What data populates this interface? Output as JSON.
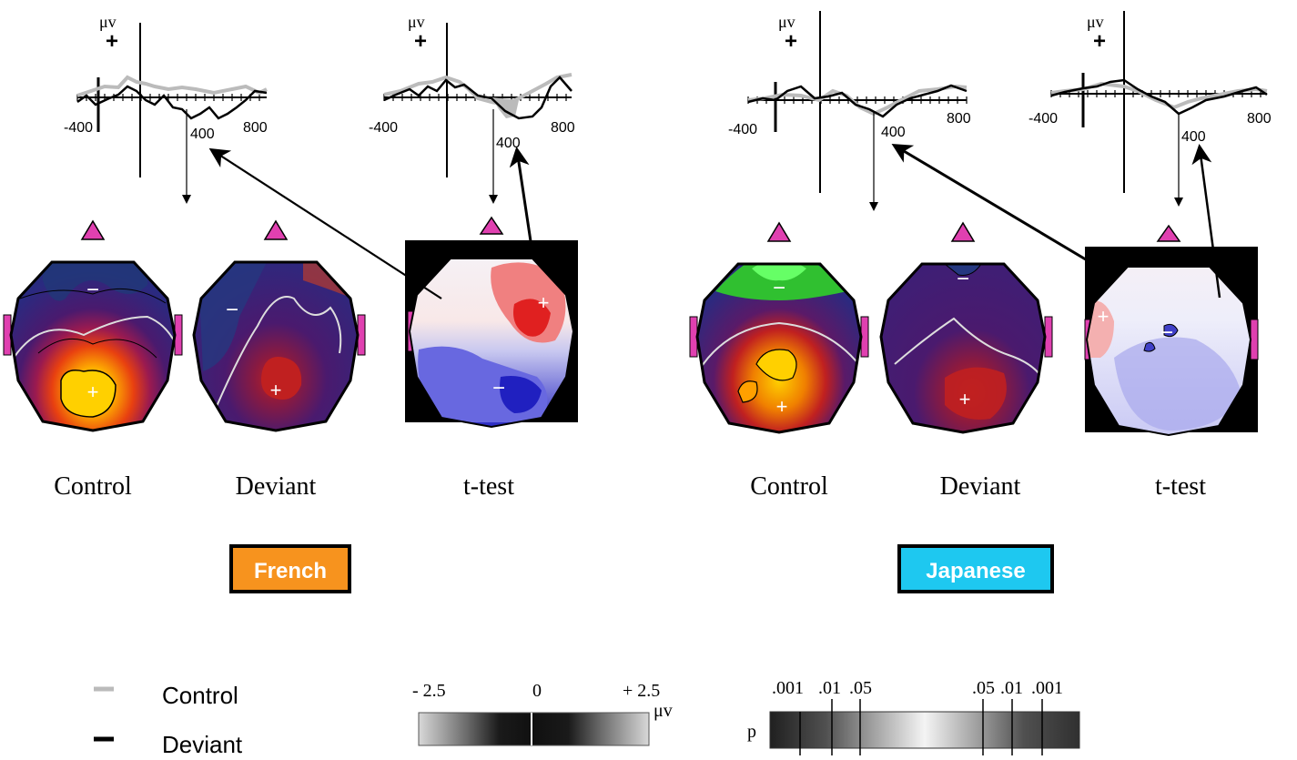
{
  "erp_axes": {
    "unit": "μv",
    "polarity": "+",
    "tick_labels": [
      "-400",
      "400",
      "800"
    ]
  },
  "panels": [
    {
      "id": "french",
      "group_label": "French",
      "group_color": "#F7931E",
      "maps": [
        {
          "label": "Control"
        },
        {
          "label": "Deviant"
        },
        {
          "label": "t-test"
        }
      ]
    },
    {
      "id": "japanese",
      "group_label": "Japanese",
      "group_color": "#1EC8F0",
      "maps": [
        {
          "label": "Control"
        },
        {
          "label": "Deviant"
        },
        {
          "label": "t-test"
        }
      ]
    }
  ],
  "map_markers": {
    "plus": "+",
    "minus": "−"
  },
  "legend": {
    "control": {
      "label": "Control",
      "color": "#BBBBBB"
    },
    "deviant": {
      "label": "Deviant",
      "color": "#000000"
    }
  },
  "voltage_scale": {
    "labels": [
      "- 2.5",
      "0",
      "+ 2.5"
    ],
    "unit": "μv"
  },
  "p_scale": {
    "prefix": "p",
    "labels": [
      ".001",
      ".01",
      ".05",
      ".05",
      ".01",
      ".001"
    ]
  },
  "colors": {
    "nose": "#E040B0",
    "map_bg_purple": "#4A1A6E",
    "map_blue": "#2A2A8A",
    "map_red": "#D02020",
    "map_yellow": "#FFD000",
    "map_green": "#33CC33"
  }
}
